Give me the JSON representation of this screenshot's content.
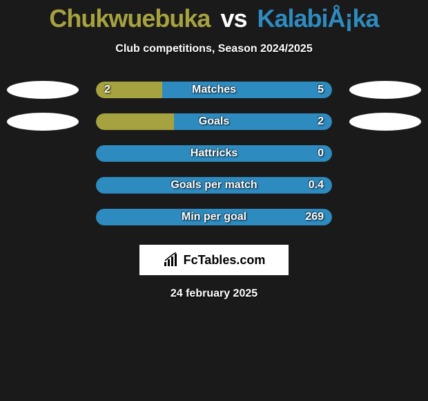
{
  "background_color": "#1a1a1a",
  "title": {
    "player1": "Chukwuebuka",
    "vs": "vs",
    "player2": "KalabiÅ¡ka",
    "player1_color": "#a6a23f",
    "player2_color": "#2e8bbf",
    "vs_color": "#ffffff",
    "fontsize": 36
  },
  "subtitle": "Club competitions, Season 2024/2025",
  "bar_colors": {
    "left": "#a6a23f",
    "right": "#2e8bbf"
  },
  "ellipse_colors": {
    "left": "#ffffff",
    "right": "#ffffff"
  },
  "rows": [
    {
      "label": "Matches",
      "left_value": "2",
      "right_value": "5",
      "left_pct": 28,
      "right_pct": 72,
      "show_left_ellipse": true,
      "show_right_ellipse": true
    },
    {
      "label": "Goals",
      "left_value": "",
      "right_value": "2",
      "left_pct": 33,
      "right_pct": 67,
      "show_left_ellipse": true,
      "show_right_ellipse": true
    },
    {
      "label": "Hattricks",
      "left_value": "",
      "right_value": "0",
      "left_pct": 0,
      "right_pct": 100,
      "show_left_ellipse": false,
      "show_right_ellipse": false
    },
    {
      "label": "Goals per match",
      "left_value": "",
      "right_value": "0.4",
      "left_pct": 0,
      "right_pct": 100,
      "show_left_ellipse": false,
      "show_right_ellipse": false
    },
    {
      "label": "Min per goal",
      "left_value": "",
      "right_value": "269",
      "left_pct": 0,
      "right_pct": 100,
      "show_left_ellipse": false,
      "show_right_ellipse": false
    }
  ],
  "logo": {
    "text": "FcTables.com",
    "bg": "#ffffff",
    "text_color": "#000000"
  },
  "date": "24 february 2025"
}
